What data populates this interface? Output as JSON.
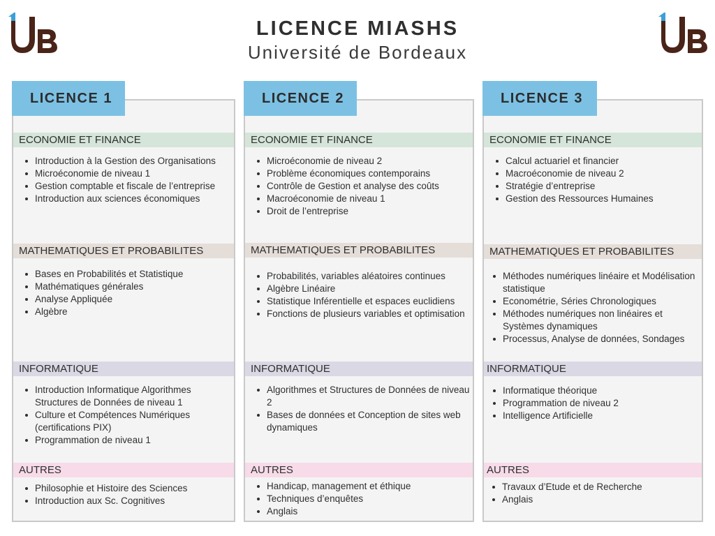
{
  "header": {
    "title": "LICENCE MIASHS",
    "subtitle": "Université de Bordeaux",
    "logo_text": "1UB"
  },
  "colors": {
    "tab": "#7cc1e4",
    "economie": "#d5e5d9",
    "math": "#e5ddd8",
    "info": "#d9d8e4",
    "autres": "#f7dbe8",
    "logo_blue": "#3aa0d8",
    "logo_brown": "#4a2418"
  },
  "columns": [
    {
      "title": "LICENCE 1",
      "sections": [
        {
          "heading": "ECONOMIE ET FINANCE",
          "items": [
            "Introduction à la Gestion des Organisations",
            "Microéconomie de niveau 1",
            "Gestion comptable et fiscale de l’entreprise",
            "Introduction aux sciences économiques"
          ]
        },
        {
          "heading": "MATHEMATIQUES ET PROBABILITES",
          "items": [
            "Bases en Probabilités et Statistique",
            "Mathématiques générales",
            "Analyse Appliquée",
            "Algèbre"
          ]
        },
        {
          "heading": "INFORMATIQUE",
          "items": [
            "Introduction Informatique Algorithmes Structures de Données de niveau 1",
            "Culture et Compétences Numériques (certifications PIX)",
            "Programmation de niveau 1"
          ]
        },
        {
          "heading": "AUTRES",
          "items": [
            "Philosophie et Histoire des Sciences",
            "Introduction aux Sc. Cognitives"
          ]
        }
      ]
    },
    {
      "title": "LICENCE 2",
      "sections": [
        {
          "heading": "ECONOMIE ET FINANCE",
          "items": [
            "Microéconomie de niveau 2",
            "Problème économiques contemporains",
            "Contrôle de Gestion et analyse des coûts",
            "Macroéconomie de niveau 1",
            "Droit de l’entreprise"
          ]
        },
        {
          "heading": "MATHEMATIQUES ET PROBABILITES",
          "items": [
            "Probabilités, variables aléatoires continues",
            "Algèbre Linéaire",
            "Statistique Inférentielle et espaces euclidiens",
            "Fonctions de plusieurs variables et optimisation"
          ]
        },
        {
          "heading": "INFORMATIQUE",
          "items": [
            "Algorithmes et Structures de Données de niveau 2",
            "Bases de données et Conception de sites web dynamiques"
          ]
        },
        {
          "heading": "AUTRES",
          "items": [
            "Handicap, management et éthique",
            "Techniques d’enquêtes",
            "Anglais"
          ]
        }
      ]
    },
    {
      "title": "LICENCE 3",
      "sections": [
        {
          "heading": "ECONOMIE ET FINANCE",
          "items": [
            "Calcul actuariel et financier",
            "Macroéconomie de niveau 2",
            "Stratégie d’entreprise",
            "Gestion des Ressources Humaines"
          ]
        },
        {
          "heading": "MATHEMATIQUES ET PROBABILITES",
          "items": [
            "Méthodes numériques linéaire et Modélisation statistique",
            "Econométrie, Séries Chronologiques",
            "Méthodes numériques non linéaires et Systèmes dynamiques",
            "Processus, Analyse de données, Sondages"
          ]
        },
        {
          "heading": "INFORMATIQUE",
          "items": [
            "Informatique théorique",
            "Programmation de niveau 2",
            "Intelligence Artificielle"
          ]
        },
        {
          "heading": "AUTRES",
          "items": [
            "Travaux d’Etude et de Recherche",
            "Anglais"
          ]
        }
      ]
    }
  ]
}
